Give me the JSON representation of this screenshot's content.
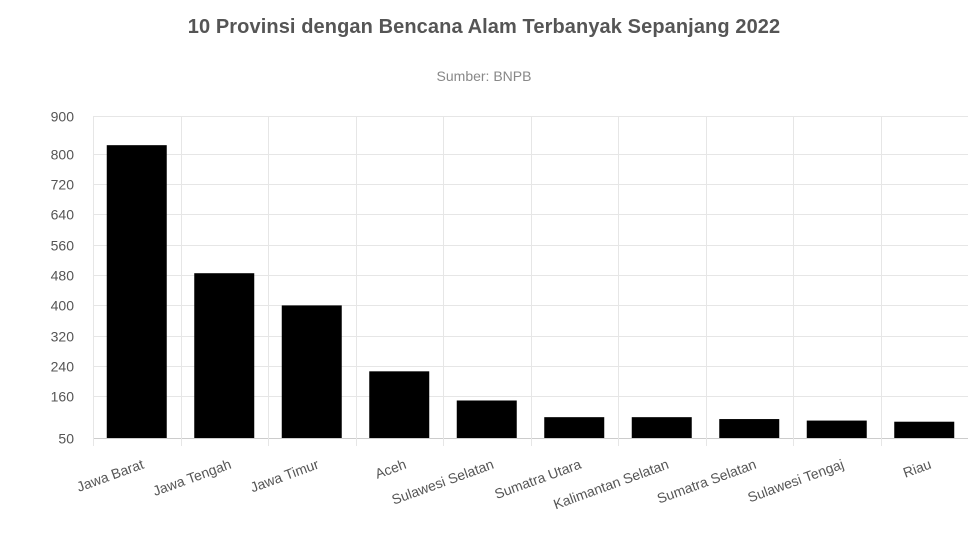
{
  "header": {
    "title": "10 Provinsi dengan Bencana Alam Terbanyak Sepanjang 2022",
    "subtitle": "Sumber: BNPB"
  },
  "chart_data": {
    "type": "bar",
    "title": "10 Provinsi dengan Bencana Alam Terbanyak Sepanjang 2022",
    "subtitle": "Sumber: BNPB",
    "categories": [
      "Jawa Barat",
      "Jawa Tengah",
      "Jawa Timur",
      "Aceh",
      "Sulawesi Selatan",
      "Sumatra Utara",
      "Kalimantan Selatan",
      "Sumatra Selatan",
      "Sulawesi Tengaj",
      "Riau"
    ],
    "values": [
      823,
      485,
      400,
      226,
      149,
      105,
      105,
      100,
      96,
      93
    ],
    "y_ticks": [
      50,
      160,
      240,
      320,
      400,
      480,
      560,
      640,
      720,
      800,
      900
    ],
    "ylim": [
      50,
      900
    ],
    "bar_color": "#000000",
    "grid": true,
    "xlabel": "",
    "ylabel": ""
  }
}
